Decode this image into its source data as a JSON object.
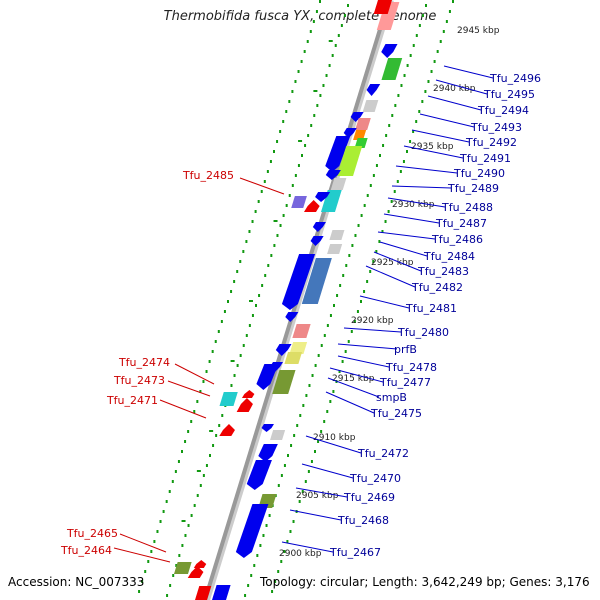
{
  "title": "Thermobifida fusca YX, complete genome",
  "accession": "Accession: NC_007333",
  "topology": "Topology: circular; Length: 3,642,249 bp; Genes: 3,176",
  "colors": {
    "backbone": "#999999",
    "plus_strand_genes": "#0000ee",
    "minus_strand_genes": "#ee0000",
    "gc_dots": "#119911",
    "label_right": "#000099",
    "label_left": "#cc0000"
  },
  "ticks": [
    "2945 kbp",
    "2940 kbp",
    "2935 kbp",
    "2930 kbp",
    "2925 kbp",
    "2920 kbp",
    "2915 kbp",
    "2910 kbp",
    "2905 kbp",
    "2900 kbp"
  ],
  "right_labels": [
    "Tfu_2496",
    "Tfu_2495",
    "Tfu_2494",
    "Tfu_2493",
    "Tfu_2492",
    "Tfu_2491",
    "Tfu_2490",
    "Tfu_2489",
    "Tfu_2488",
    "Tfu_2487",
    "Tfu_2486",
    "Tfu_2484",
    "Tfu_2483",
    "Tfu_2482",
    "Tfu_2481",
    "Tfu_2480",
    "prfB",
    "Tfu_2478",
    "Tfu_2477",
    "smpB",
    "Tfu_2475",
    "Tfu_2472",
    "Tfu_2470",
    "Tfu_2469",
    "Tfu_2468",
    "Tfu_2467"
  ],
  "left_labels": [
    "Tfu_2485",
    "Tfu_2474",
    "Tfu_2473",
    "Tfu_2471",
    "Tfu_2465",
    "Tfu_2464"
  ]
}
